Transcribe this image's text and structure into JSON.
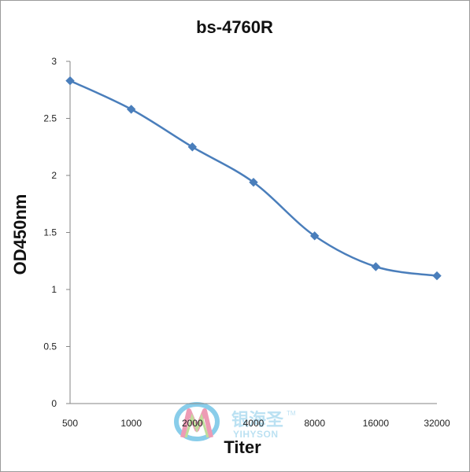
{
  "chart_data": {
    "type": "line",
    "title": "bs-4760R",
    "xlabel": "Titer",
    "ylabel": "OD450nm",
    "categories": [
      "500",
      "1000",
      "2000",
      "4000",
      "8000",
      "16000",
      "32000"
    ],
    "series": [
      {
        "values": [
          2.83,
          2.58,
          2.25,
          1.94,
          1.47,
          1.2,
          1.12
        ]
      }
    ],
    "ylim": [
      0,
      3
    ],
    "yticks": [
      "0",
      "0.5",
      "1",
      "1.5",
      "2",
      "2.5",
      "3"
    ],
    "grid": false,
    "legend": "none",
    "line_color": "#4a7ebb"
  },
  "watermark": {
    "chinese": "银海圣",
    "latin": "YIHYSON",
    "trademark": "TM"
  }
}
